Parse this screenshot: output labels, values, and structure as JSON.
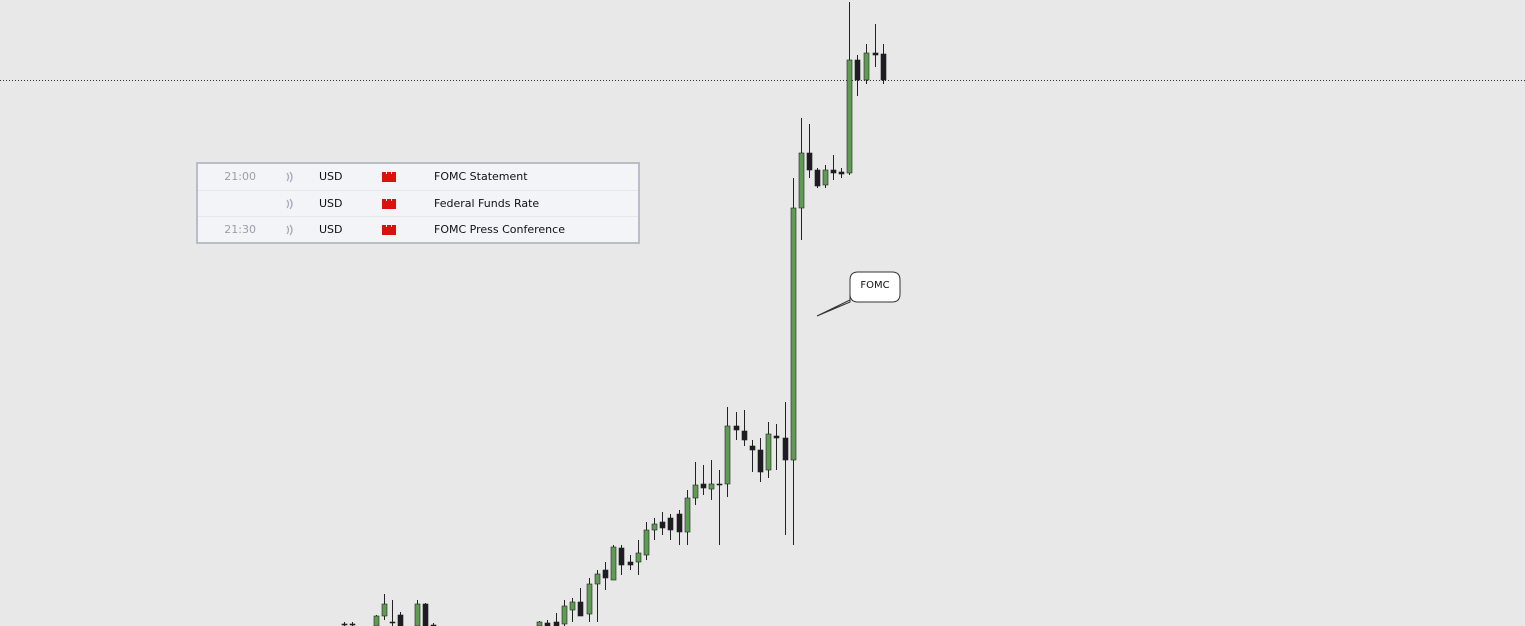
{
  "calendar": {
    "rows": [
      {
        "time": "21:00",
        "currency": "USD",
        "event": "FOMC Statement"
      },
      {
        "currency": "USD",
        "event": "Federal Funds Rate"
      },
      {
        "time": "21:30",
        "currency": "USD",
        "event": "FOMC Press Conference"
      }
    ]
  },
  "annotation": "FOMC"
}
